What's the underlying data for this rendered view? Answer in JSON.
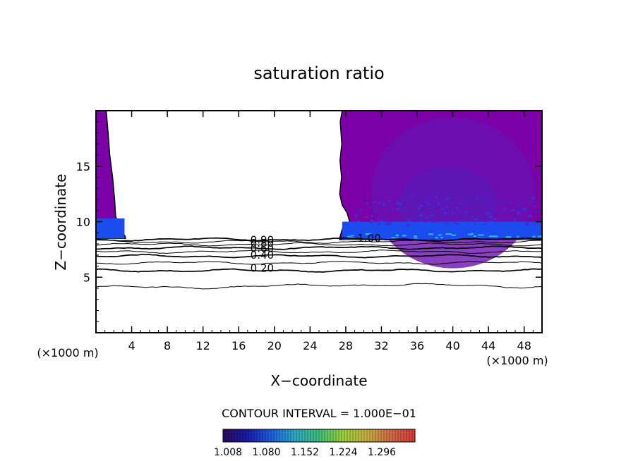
{
  "chart_data": {
    "type": "contour",
    "title": "saturation ratio",
    "xlabel": "X−coordinate",
    "ylabel": "Z−coordinate",
    "x_unit_left": "(×1000 m)",
    "x_unit_right": "(×1000 m)",
    "xlim": [
      0,
      50
    ],
    "ylim": [
      0,
      20
    ],
    "x_ticks": [
      4,
      8,
      12,
      16,
      20,
      24,
      28,
      32,
      36,
      40,
      44,
      48
    ],
    "y_ticks": [
      5,
      10,
      15
    ],
    "x_tick_labels": [
      "4",
      "8",
      "12",
      "16",
      "20",
      "24",
      "28",
      "32",
      "36",
      "40",
      "44",
      "48"
    ],
    "y_tick_labels": [
      "5",
      "10",
      "15"
    ],
    "contour_interval_label": "CONTOUR INTERVAL = 1.000E−01",
    "contour_labels": [
      {
        "text": "0.90",
        "x": 17.3,
        "z": 8.35
      },
      {
        "text": "0.80",
        "x": 17.3,
        "z": 8.05
      },
      {
        "text": "0.60",
        "x": 17.3,
        "z": 7.6
      },
      {
        "text": "0.40",
        "x": 17.3,
        "z": 7.0
      },
      {
        "text": "0.20",
        "x": 17.3,
        "z": 5.8
      },
      {
        "text": "1.00",
        "x": 29.3,
        "z": 8.5
      }
    ],
    "contour_levels_z": [
      4.2,
      5.6,
      6.3,
      6.9,
      7.3,
      7.65,
      7.95,
      8.2,
      8.4
    ],
    "supersaturated_regions": [
      {
        "name": "left",
        "x_range": [
          0,
          3.3
        ],
        "z_range": [
          8.5,
          20
        ]
      },
      {
        "name": "right",
        "x_range": [
          27.3,
          50
        ],
        "z_range": [
          8.4,
          20
        ]
      }
    ],
    "colorbar": {
      "tick_labels": [
        "1.008",
        "1.080",
        "1.152",
        "1.224",
        "1.296"
      ],
      "colors": [
        "#2b0a5e",
        "#1a1aa8",
        "#1c5fe0",
        "#2fa8c8",
        "#3fc07a",
        "#9ad03a",
        "#c8b040",
        "#d06a48",
        "#d83a3a"
      ]
    },
    "fill_colors": {
      "base": "#7b00a8",
      "deep": "#6a10b0",
      "blue_band": "#1a4cf0",
      "cyan_highlight": "#28c8f0"
    }
  }
}
